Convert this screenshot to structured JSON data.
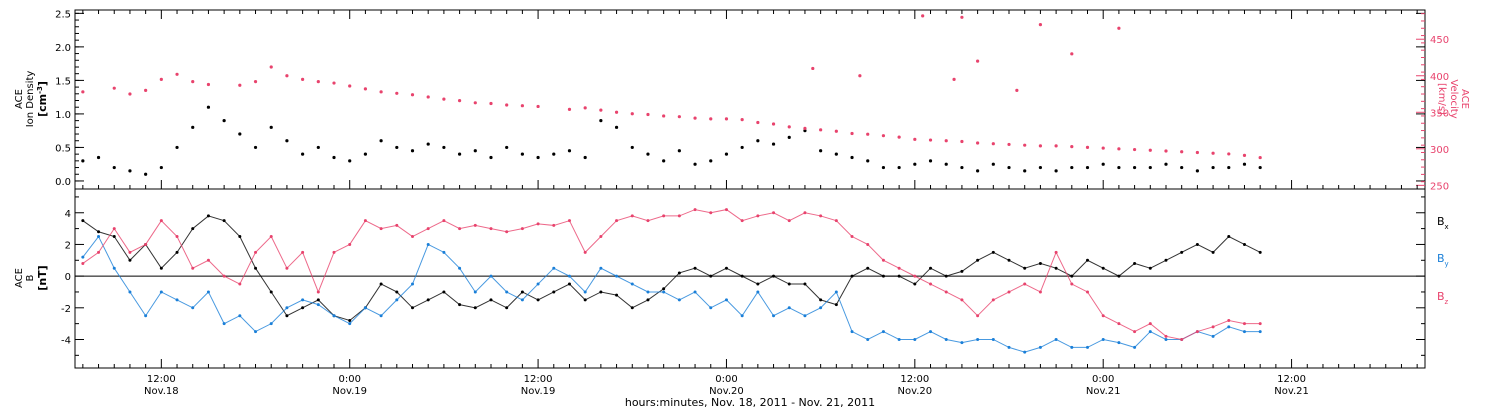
{
  "colors": {
    "density": "#000000",
    "velocity": "#e8436d",
    "bx": "#000000",
    "by": "#1a7fd8",
    "bz": "#e8436d",
    "axis": "#000000"
  },
  "x_axis": {
    "title": "hours:minutes, Nov. 18, 2011 - Nov. 21, 2011",
    "range_hours": [
      6.5,
      92.5
    ],
    "ticks": [
      {
        "hour": 12,
        "time": "12:00",
        "date": "Nov.18"
      },
      {
        "hour": 24,
        "time": "0:00",
        "date": "Nov.19"
      },
      {
        "hour": 36,
        "time": "12:00",
        "date": "Nov.19"
      },
      {
        "hour": 48,
        "time": "0:00",
        "date": "Nov.20"
      },
      {
        "hour": 60,
        "time": "12:00",
        "date": "Nov.20"
      },
      {
        "hour": 72,
        "time": "0:00",
        "date": "Nov.21"
      },
      {
        "hour": 84,
        "time": "12:00",
        "date": "Nov.21"
      }
    ],
    "minor_every_hours": 1
  },
  "top_panel": {
    "left_label_lines": [
      "ACE",
      "Ion Density"
    ],
    "left_unit_base": "[cm",
    "left_unit_exp": "-3",
    "left_unit_close": "]",
    "right_label_lines": [
      "ACE",
      "Velocity"
    ],
    "right_unit": "[km/s]"
  },
  "bottom_panel": {
    "label_lines": [
      "ACE",
      "B"
    ],
    "unit": "[nT]",
    "legend": [
      {
        "base": "B",
        "sub": "x",
        "color_key": "bx"
      },
      {
        "base": "B",
        "sub": "y",
        "color_key": "by"
      },
      {
        "base": "B",
        "sub": "z",
        "color_key": "bz"
      }
    ]
  },
  "chart_data": [
    {
      "type": "scatter",
      "panel": "top",
      "ylabel": "ACE Ion Density [cm-3]",
      "ylim": [
        -0.12,
        2.55
      ],
      "yticks": [
        0.0,
        0.5,
        1.0,
        1.5,
        2.0,
        2.5
      ],
      "ytick_labels": [
        "0.0",
        "0.5",
        "1.0",
        "1.5",
        "2.0",
        "2.5"
      ],
      "series": [
        {
          "color_key": "density",
          "x_hours": [
            7,
            8,
            9,
            10,
            11,
            12,
            13,
            14,
            15,
            16,
            17,
            18,
            19,
            20,
            21,
            22,
            23,
            24,
            25,
            26,
            27,
            28,
            29,
            30,
            31,
            32,
            33,
            34,
            35,
            36,
            37,
            38,
            39,
            40,
            41,
            42,
            43,
            44,
            45,
            46,
            47,
            48,
            49,
            50,
            51,
            52,
            53,
            54,
            55,
            56,
            57,
            58,
            59,
            60,
            61,
            62,
            63,
            64,
            65,
            66,
            67,
            68,
            69,
            70,
            71,
            72,
            73,
            74,
            75,
            76,
            77,
            78,
            79,
            80,
            81,
            82
          ],
          "y": [
            0.3,
            0.35,
            0.2,
            0.15,
            0.1,
            0.2,
            0.5,
            0.8,
            1.1,
            0.9,
            0.7,
            0.5,
            0.8,
            0.6,
            0.4,
            0.5,
            0.35,
            0.3,
            0.4,
            0.6,
            0.5,
            0.45,
            0.55,
            0.5,
            0.4,
            0.45,
            0.35,
            0.5,
            0.4,
            0.35,
            0.4,
            0.45,
            0.35,
            0.9,
            0.8,
            0.5,
            0.4,
            0.3,
            0.45,
            0.25,
            0.3,
            0.4,
            0.5,
            0.6,
            0.55,
            0.65,
            0.75,
            0.45,
            0.4,
            0.35,
            0.3,
            0.2,
            0.2,
            0.25,
            0.3,
            0.25,
            0.2,
            0.15,
            0.25,
            0.2,
            0.15,
            0.2,
            0.15,
            0.2,
            0.2,
            0.25,
            0.2,
            0.2,
            0.2,
            0.25,
            0.2,
            0.15,
            0.2,
            0.2,
            0.25,
            0.2
          ]
        }
      ]
    },
    {
      "type": "scatter",
      "panel": "top",
      "ylabel": "ACE Velocity [km/s]",
      "ylim": [
        245,
        490
      ],
      "yticks": [
        250,
        300,
        350,
        400,
        450
      ],
      "ytick_labels": [
        "250",
        "300",
        "350",
        "400",
        "450"
      ],
      "series": [
        {
          "color_key": "velocity",
          "x_hours": [
            7,
            9,
            10,
            11,
            12,
            13,
            14,
            15,
            17,
            18,
            19,
            20,
            21,
            22,
            23,
            24,
            25,
            26,
            27,
            28,
            29,
            30,
            31,
            32,
            33,
            34,
            35,
            36,
            38,
            39,
            40,
            41,
            42,
            43,
            44,
            45,
            46,
            47,
            48,
            49,
            50,
            51,
            52,
            53,
            54,
            55,
            56,
            57,
            58,
            59,
            60,
            61,
            62,
            63,
            64,
            65,
            66,
            67,
            68,
            69,
            70,
            71,
            72,
            73,
            74,
            75,
            76,
            77,
            78,
            79,
            80,
            81,
            82
          ],
          "y": [
            378,
            383,
            375,
            380,
            395,
            402,
            392,
            388,
            387,
            392,
            412,
            400,
            395,
            392,
            390,
            386,
            382,
            378,
            376,
            374,
            371,
            368,
            366,
            363,
            362,
            360,
            359,
            358,
            354,
            356,
            353,
            350,
            348,
            347,
            345,
            344,
            342,
            341,
            341,
            340,
            336,
            334,
            330,
            328,
            326,
            324,
            321,
            320,
            318,
            316,
            313,
            312,
            311,
            310,
            308,
            307,
            306,
            305,
            304,
            304,
            303,
            302,
            301,
            300,
            299,
            298,
            297,
            296,
            295,
            294,
            293,
            291,
            288
          ]
        },
        {
          "color_key": "velocity",
          "name": "outliers",
          "x_hours": [
            53.5,
            56.5,
            60.5,
            62.5,
            63,
            64,
            66.5,
            68,
            70,
            73
          ],
          "y": [
            410,
            400,
            482,
            395,
            480,
            420,
            380,
            470,
            430,
            465
          ]
        }
      ]
    },
    {
      "type": "line",
      "panel": "bottom",
      "ylabel": "ACE B [nT]",
      "ylim": [
        -5.8,
        5.5
      ],
      "yticks": [
        -4,
        -2,
        0,
        2,
        4
      ],
      "ytick_labels": [
        "-4",
        "-2",
        "0",
        "2",
        "4"
      ],
      "x_hours": [
        7,
        8,
        9,
        10,
        11,
        12,
        13,
        14,
        15,
        16,
        17,
        18,
        19,
        20,
        21,
        22,
        23,
        24,
        25,
        26,
        27,
        28,
        29,
        30,
        31,
        32,
        33,
        34,
        35,
        36,
        37,
        38,
        39,
        40,
        41,
        42,
        43,
        44,
        45,
        46,
        47,
        48,
        49,
        50,
        51,
        52,
        53,
        54,
        55,
        56,
        57,
        58,
        59,
        60,
        61,
        62,
        63,
        64,
        65,
        66,
        67,
        68,
        69,
        70,
        71,
        72,
        73,
        74,
        75,
        76,
        77,
        78,
        79,
        80,
        81,
        82
      ],
      "series": [
        {
          "color_key": "bx",
          "values": [
            3.5,
            2.8,
            2.5,
            1.0,
            2.0,
            0.5,
            1.5,
            3.0,
            3.8,
            3.5,
            2.5,
            0.5,
            -1.0,
            -2.5,
            -2.0,
            -1.5,
            -2.5,
            -2.8,
            -2.0,
            -0.5,
            -1.0,
            -2.0,
            -1.5,
            -1.0,
            -1.8,
            -2.0,
            -1.5,
            -2.0,
            -1.0,
            -1.5,
            -1.0,
            -0.5,
            -1.5,
            -1.0,
            -1.2,
            -2.0,
            -1.5,
            -0.8,
            0.2,
            0.5,
            0.0,
            0.5,
            0.0,
            -0.5,
            0.0,
            -0.5,
            -0.5,
            -1.5,
            -1.8,
            0.0,
            0.5,
            0.0,
            0.0,
            -0.5,
            0.5,
            0.0,
            0.3,
            1.0,
            1.5,
            1.0,
            0.5,
            0.8,
            0.5,
            0.0,
            1.0,
            0.5,
            0.0,
            0.8,
            0.5,
            1.0,
            1.5,
            2.0,
            1.5,
            2.5,
            2.0,
            1.5
          ]
        },
        {
          "color_key": "by",
          "values": [
            1.2,
            2.5,
            0.5,
            -1.0,
            -2.5,
            -1.0,
            -1.5,
            -2.0,
            -1.0,
            -3.0,
            -2.5,
            -3.5,
            -3.0,
            -2.0,
            -1.5,
            -1.8,
            -2.5,
            -3.0,
            -2.0,
            -2.5,
            -1.5,
            -0.5,
            2.0,
            1.5,
            0.5,
            -1.0,
            0.0,
            -1.0,
            -1.5,
            -0.5,
            0.5,
            0.0,
            -1.0,
            0.5,
            0.0,
            -0.5,
            -1.0,
            -1.0,
            -1.5,
            -1.0,
            -2.0,
            -1.5,
            -2.5,
            -1.0,
            -2.5,
            -2.0,
            -2.5,
            -2.0,
            -1.0,
            -3.5,
            -4.0,
            -3.5,
            -4.0,
            -4.0,
            -3.5,
            -4.0,
            -4.2,
            -4.0,
            -4.0,
            -4.5,
            -4.8,
            -4.5,
            -4.0,
            -4.5,
            -4.5,
            -4.0,
            -4.2,
            -4.5,
            -3.5,
            -4.0,
            -4.0,
            -3.5,
            -3.8,
            -3.2,
            -3.5,
            -3.5
          ]
        },
        {
          "color_key": "bz",
          "values": [
            0.8,
            1.5,
            3.0,
            1.5,
            2.0,
            3.5,
            2.5,
            0.5,
            1.0,
            0.0,
            -0.5,
            1.5,
            2.5,
            0.5,
            1.5,
            -1.0,
            1.5,
            2.0,
            3.5,
            3.0,
            3.2,
            2.5,
            3.0,
            3.5,
            3.0,
            3.2,
            3.0,
            2.8,
            3.0,
            3.3,
            3.2,
            3.5,
            1.5,
            2.5,
            3.5,
            3.8,
            3.5,
            3.8,
            3.8,
            4.2,
            4.0,
            4.2,
            3.5,
            3.8,
            4.0,
            3.5,
            4.0,
            3.8,
            3.5,
            2.5,
            2.0,
            1.0,
            0.5,
            0.0,
            -0.5,
            -1.0,
            -1.5,
            -2.5,
            -1.5,
            -1.0,
            -0.5,
            -1.0,
            1.5,
            -0.5,
            -1.0,
            -2.5,
            -3.0,
            -3.5,
            -3.0,
            -3.8,
            -4.0,
            -3.5,
            -3.2,
            -2.8,
            -3.0,
            -3.0
          ]
        }
      ]
    }
  ]
}
